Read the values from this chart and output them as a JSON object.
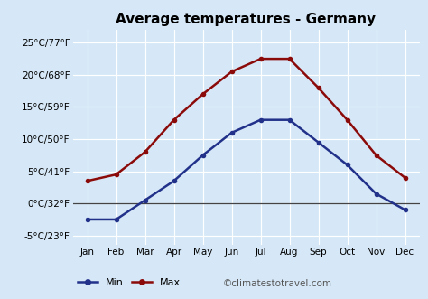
{
  "title": "Average temperatures - Germany",
  "months": [
    "Jan",
    "Feb",
    "Mar",
    "Apr",
    "May",
    "Jun",
    "Jul",
    "Aug",
    "Sep",
    "Oct",
    "Nov",
    "Dec"
  ],
  "min_temps": [
    -2.5,
    -2.5,
    0.5,
    3.5,
    7.5,
    11,
    13,
    13,
    9.5,
    6,
    1.5,
    -1
  ],
  "max_temps": [
    3.5,
    4.5,
    8,
    13,
    17,
    20.5,
    22.5,
    22.5,
    18,
    13,
    7.5,
    4
  ],
  "min_color": "#22318a",
  "max_color": "#8b0a0a",
  "bg_color": "#d6e8f7",
  "plot_bg_color": "#d6e8f7",
  "yticks": [
    -5,
    0,
    5,
    10,
    15,
    20,
    25
  ],
  "ytick_labels": [
    "-5°C/23°F",
    "0°C/32°F",
    "5°C/41°F",
    "10°C/50°F",
    "15°C/59°F",
    "20°C/68°F",
    "25°C/77°F"
  ],
  "ylim": [
    -6.5,
    27
  ],
  "watermark": "©climatestotravel.com",
  "title_fontsize": 11,
  "tick_fontsize": 7.5,
  "legend_fontsize": 8,
  "watermark_fontsize": 7.5,
  "grid_color": "#ffffff",
  "zero_line_color": "#444444"
}
